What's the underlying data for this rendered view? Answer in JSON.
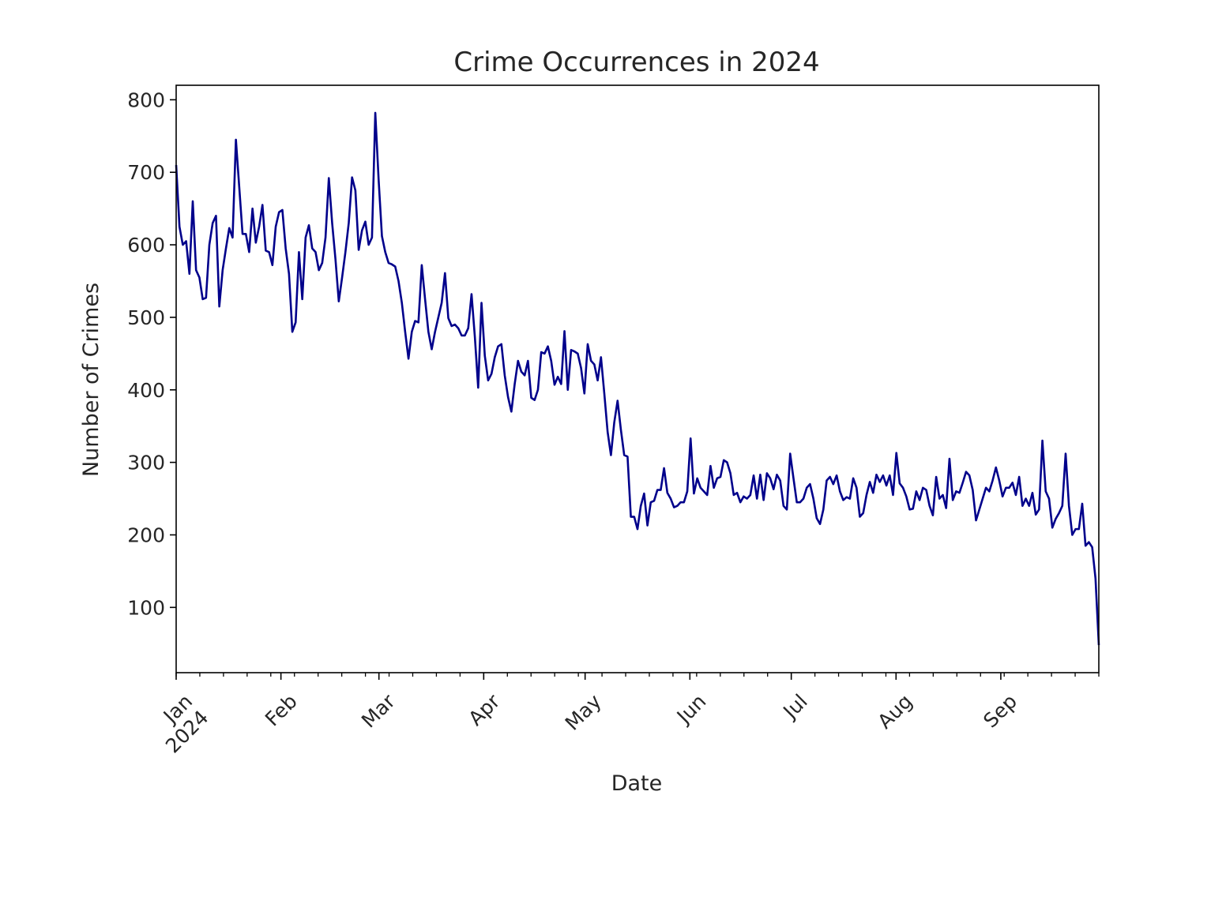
{
  "chart_data": {
    "type": "line",
    "title": "Crime Occurrences in 2024",
    "xlabel": "Date",
    "ylabel": "Number of Crimes",
    "line_color": "#00008b",
    "x_start": "2024-01-01",
    "x_end": "2024-09-30",
    "ylim": [
      10,
      820
    ],
    "yticks": [
      100,
      200,
      300,
      400,
      500,
      600,
      700,
      800
    ],
    "x_major_ticks": [
      {
        "date": "2024-01-01",
        "label": "Jan",
        "sublabel": "2024"
      },
      {
        "date": "2024-02-01",
        "label": "Feb"
      },
      {
        "date": "2024-03-01",
        "label": "Mar"
      },
      {
        "date": "2024-04-01",
        "label": "Apr"
      },
      {
        "date": "2024-05-01",
        "label": "May"
      },
      {
        "date": "2024-06-01",
        "label": "Jun"
      },
      {
        "date": "2024-07-01",
        "label": "Jul"
      },
      {
        "date": "2024-08-01",
        "label": "Aug"
      },
      {
        "date": "2024-09-01",
        "label": "Sep"
      }
    ],
    "grid": false,
    "legend": false,
    "series": [
      {
        "values": [
          710,
          625,
          600,
          605,
          560,
          660,
          565,
          555,
          525,
          527,
          600,
          630,
          640,
          515,
          565,
          595,
          623,
          610,
          745,
          680,
          615,
          615,
          590,
          650,
          603,
          625,
          655,
          592,
          590,
          572,
          625,
          645,
          648,
          595,
          560,
          480,
          493,
          590,
          525,
          610,
          627,
          595,
          590,
          565,
          575,
          610,
          692,
          630,
          580,
          522,
          555,
          590,
          630,
          693,
          675,
          593,
          620,
          632,
          600,
          610,
          782,
          690,
          612,
          590,
          575,
          573,
          570,
          550,
          520,
          480,
          443,
          480,
          495,
          493,
          572,
          525,
          480,
          456,
          480,
          500,
          520,
          561,
          499,
          488,
          490,
          485,
          475,
          475,
          485,
          532,
          473,
          403,
          520,
          447,
          413,
          422,
          445,
          460,
          463,
          420,
          390,
          370,
          408,
          440,
          425,
          420,
          440,
          389,
          386,
          400,
          452,
          450,
          460,
          440,
          407,
          418,
          408,
          481,
          400,
          455,
          453,
          450,
          430,
          395,
          463,
          440,
          435,
          413,
          445,
          395,
          342,
          310,
          355,
          385,
          345,
          310,
          308,
          225,
          225,
          208,
          240,
          257,
          213,
          245,
          247,
          262,
          262,
          292,
          258,
          250,
          238,
          240,
          245,
          245,
          260,
          333,
          257,
          278,
          265,
          260,
          255,
          295,
          265,
          278,
          280,
          303,
          300,
          285,
          255,
          258,
          245,
          253,
          250,
          255,
          282,
          250,
          283,
          248,
          285,
          278,
          263,
          283,
          275,
          240,
          235,
          312,
          278,
          245,
          245,
          250,
          265,
          270,
          250,
          223,
          215,
          235,
          275,
          280,
          270,
          282,
          260,
          248,
          252,
          250,
          278,
          265,
          225,
          230,
          255,
          273,
          258,
          283,
          273,
          282,
          268,
          282,
          255,
          313,
          271,
          265,
          253,
          235,
          236,
          260,
          248,
          265,
          262,
          240,
          227,
          280,
          250,
          255,
          237,
          305,
          248,
          260,
          258,
          272,
          287,
          282,
          262,
          220,
          235,
          250,
          265,
          260,
          275,
          293,
          275,
          253,
          265,
          265,
          272,
          255,
          280,
          240,
          250,
          240,
          258,
          228,
          235,
          330,
          260,
          250,
          210,
          222,
          230,
          240,
          312,
          240,
          200,
          208,
          208,
          243,
          185,
          190,
          183,
          140,
          48
        ]
      }
    ]
  }
}
